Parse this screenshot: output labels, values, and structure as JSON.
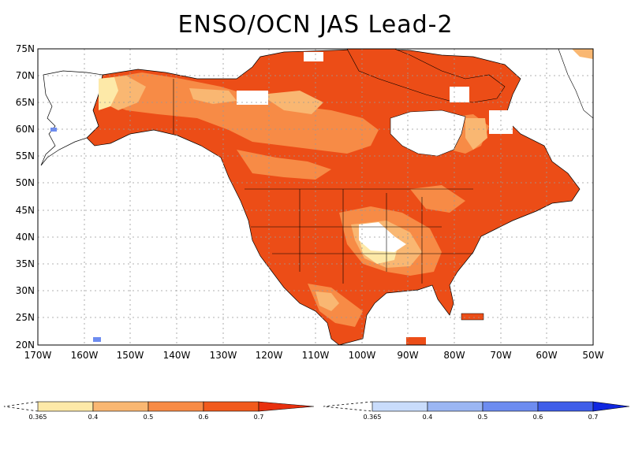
{
  "title": "ENSO/OCN JAS Lead-2",
  "map": {
    "lat_labels": [
      "75N",
      "70N",
      "65N",
      "60N",
      "55N",
      "50N",
      "45N",
      "40N",
      "35N",
      "30N",
      "25N",
      "20N"
    ],
    "lon_labels": [
      "170W",
      "160W",
      "150W",
      "140W",
      "130W",
      "120W",
      "110W",
      "100W",
      "90W",
      "80W",
      "70W",
      "60W",
      "50W"
    ],
    "grid": "dotted"
  },
  "legend": {
    "warm": {
      "labels": [
        "0.365",
        "0.4",
        "0.5",
        "0.6",
        "0.7"
      ],
      "colors": [
        "#fde9a8",
        "#f9b772",
        "#f78b46",
        "#f15a1c",
        "#e8300e"
      ]
    },
    "cold": {
      "labels": [
        "0.365",
        "0.4",
        "0.5",
        "0.6",
        "0.7"
      ],
      "colors": [
        "#c9dcfb",
        "#9bb6f3",
        "#6d8cf0",
        "#3f5ee9",
        "#1027e0"
      ]
    }
  },
  "colors": {
    "land_white": "#ffffff",
    "ocean": "#ffffff",
    "border": "#000000",
    "grid": "#999999"
  }
}
